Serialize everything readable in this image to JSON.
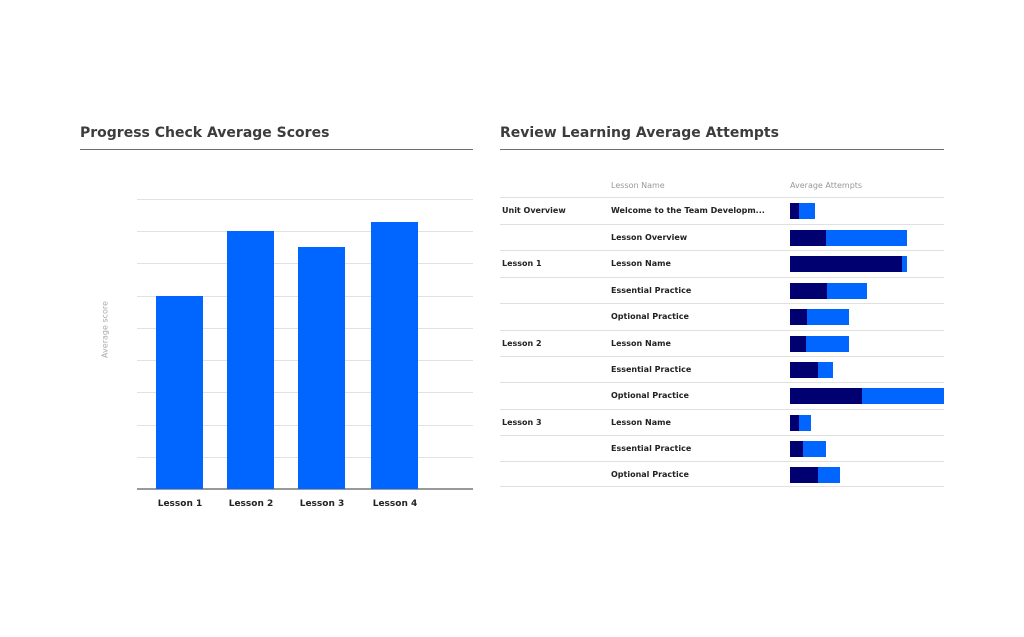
{
  "left_panel": {
    "title": "Progress Check Average Scores"
  },
  "right_panel": {
    "title": "Review Learning Average Attempts",
    "headers": {
      "unit": "",
      "lesson_name": "Lesson Name",
      "attempts": "Average Attempts"
    },
    "rows": [
      {
        "unit": "Unit Overview",
        "name": "Welcome to the Team Developm...",
        "dark": 9,
        "light": 16
      },
      {
        "unit": "",
        "name": "Lesson Overview",
        "dark": 36,
        "light": 81
      },
      {
        "unit": "Lesson 1",
        "name": "Lesson Name",
        "dark": 112,
        "light": 5
      },
      {
        "unit": "",
        "name": "Essential Practice",
        "dark": 37,
        "light": 40
      },
      {
        "unit": "",
        "name": "Optional Practice",
        "dark": 17,
        "light": 42
      },
      {
        "unit": "Lesson 2",
        "name": "Lesson Name",
        "dark": 16,
        "light": 43
      },
      {
        "unit": "",
        "name": "Essential Practice",
        "dark": 28,
        "light": 15
      },
      {
        "unit": "",
        "name": "Optional Practice",
        "dark": 72,
        "light": 82
      },
      {
        "unit": "Lesson 3",
        "name": "Lesson Name",
        "dark": 9,
        "light": 12
      },
      {
        "unit": "",
        "name": "Essential Practice",
        "dark": 13,
        "light": 23
      },
      {
        "unit": "",
        "name": "Optional Practice",
        "dark": 28,
        "light": 22
      }
    ]
  },
  "chart_data": [
    {
      "type": "bar",
      "title": "Progress Check Average Scores",
      "categories": [
        "Lesson 1",
        "Lesson 2",
        "Lesson 3",
        "Lesson 4"
      ],
      "values": [
        6.0,
        8.0,
        7.5,
        8.3
      ],
      "xlabel": "",
      "ylabel": "Average score",
      "ylim": [
        0,
        9
      ],
      "grid": true,
      "colors": {
        "bar": "#0066ff"
      }
    },
    {
      "type": "bar",
      "orientation": "horizontal",
      "stacked": true,
      "title": "Review Learning Average Attempts",
      "categories": [
        "Welcome to the Team Developm...",
        "Lesson Overview",
        "Lesson Name",
        "Essential Practice",
        "Optional Practice",
        "Lesson Name",
        "Essential Practice",
        "Optional Practice",
        "Lesson Name",
        "Essential Practice",
        "Optional Practice"
      ],
      "groups": [
        "Unit Overview",
        "",
        "Lesson 1",
        "",
        "",
        "Lesson 2",
        "",
        "",
        "Lesson 3",
        "",
        ""
      ],
      "series": [
        {
          "name": "dark",
          "color": "#000070",
          "values": [
            9,
            36,
            112,
            37,
            17,
            16,
            28,
            72,
            9,
            13,
            28
          ]
        },
        {
          "name": "light",
          "color": "#0066ff",
          "values": [
            16,
            81,
            5,
            40,
            42,
            43,
            15,
            82,
            12,
            23,
            22
          ]
        }
      ],
      "units": "relative pixel length (no axis shown)"
    }
  ]
}
